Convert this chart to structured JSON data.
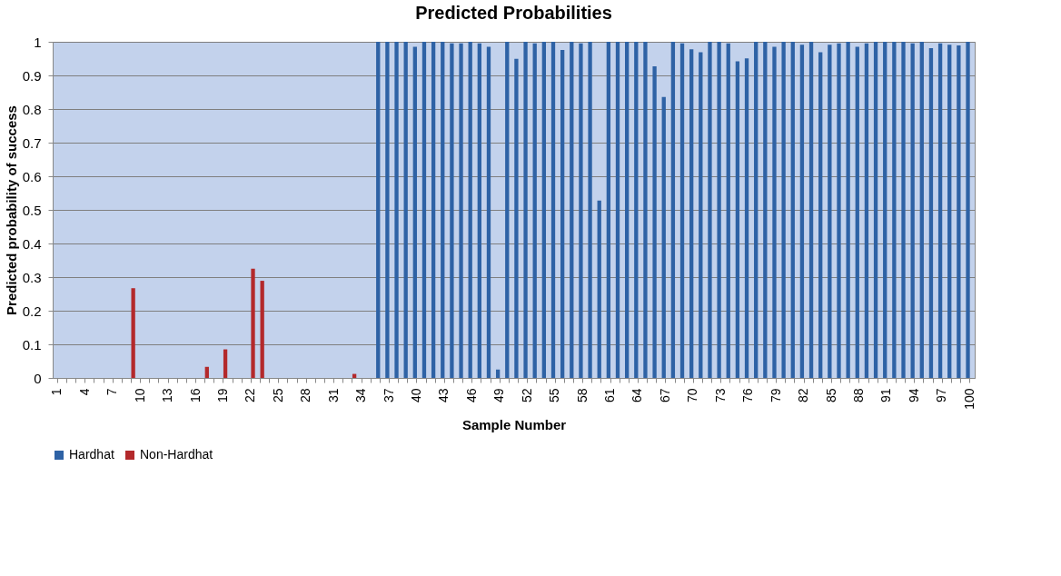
{
  "chart_data": {
    "type": "bar",
    "title": "Predicted Probabilities",
    "xlabel": "Sample Number",
    "ylabel": "Predicted probability of success",
    "categories": [
      "1",
      null,
      null,
      "4",
      null,
      null,
      "7",
      null,
      null,
      "10",
      null,
      null,
      "13",
      null,
      null,
      "16",
      null,
      null,
      "19",
      null,
      null,
      "22",
      null,
      null,
      "25",
      null,
      null,
      "28",
      null,
      null,
      "31",
      null,
      null,
      "34",
      null,
      null,
      "37",
      null,
      null,
      "40",
      null,
      null,
      "43",
      null,
      null,
      "46",
      null,
      null,
      "49",
      null,
      null,
      "52",
      null,
      null,
      "55",
      null,
      null,
      "58",
      null,
      null,
      "61",
      null,
      null,
      "64",
      null,
      null,
      "67",
      null,
      null,
      "70",
      null,
      null,
      "73",
      null,
      null,
      "76",
      null,
      null,
      "79",
      null,
      null,
      "82",
      null,
      null,
      "85",
      null,
      null,
      "88",
      null,
      null,
      "91",
      null,
      null,
      "94",
      null,
      null,
      "97",
      null,
      null,
      "100"
    ],
    "series": [
      {
        "name": "Hardhat",
        "color": "#2e62a5",
        "values": [
          null,
          null,
          null,
          null,
          null,
          null,
          null,
          null,
          null,
          null,
          null,
          null,
          null,
          null,
          null,
          null,
          null,
          null,
          null,
          null,
          null,
          null,
          null,
          null,
          null,
          null,
          null,
          null,
          null,
          null,
          null,
          null,
          null,
          null,
          null,
          1,
          1,
          1,
          1,
          0.985,
          1,
          1,
          1,
          0.995,
          0.995,
          1,
          0.995,
          0.985,
          0.025,
          1,
          0.949,
          1,
          0.995,
          1,
          1,
          0.976,
          1,
          0.995,
          1,
          0.528,
          1,
          1,
          1,
          1,
          1,
          0.927,
          0.836,
          1,
          0.995,
          0.978,
          0.969,
          1,
          1,
          0.995,
          0.942,
          0.951,
          1,
          1,
          0.985,
          1,
          1,
          0.991,
          1,
          0.969,
          0.991,
          0.995,
          1,
          0.985,
          0.995,
          1,
          1,
          1,
          1,
          0.995,
          1,
          0.981,
          0.995,
          0.991,
          0.989,
          1
        ]
      },
      {
        "name": "Non-Hardhat",
        "color": "#b3292b",
        "values": [
          0,
          0,
          0,
          0,
          0,
          0,
          0,
          0,
          0.267,
          0,
          0,
          0,
          0,
          0,
          0,
          0,
          0.033,
          0,
          0.085,
          0,
          0,
          0.325,
          0.289,
          0,
          0,
          0,
          0,
          0,
          0,
          0,
          0,
          0,
          0.012,
          0,
          0,
          null,
          null,
          null,
          null,
          null,
          null,
          null,
          null,
          null,
          null,
          null,
          null,
          null,
          null,
          null,
          null,
          null,
          null,
          null,
          null,
          null,
          null,
          null,
          null,
          null,
          null,
          null,
          null,
          null,
          null,
          null,
          null,
          null,
          null,
          null,
          null,
          null,
          null,
          null,
          null,
          null,
          null,
          null,
          null,
          null,
          null,
          null,
          null,
          null,
          null,
          null,
          null,
          null,
          null,
          null,
          null,
          null,
          null,
          null,
          null,
          null,
          null,
          null,
          null,
          null
        ]
      }
    ],
    "ylim": [
      0,
      1
    ],
    "yticks": [
      0,
      0.1,
      0.2,
      0.3,
      0.4,
      0.5,
      0.6,
      0.7,
      0.8,
      0.9,
      1
    ],
    "grid": "y",
    "legend": "bottom"
  }
}
